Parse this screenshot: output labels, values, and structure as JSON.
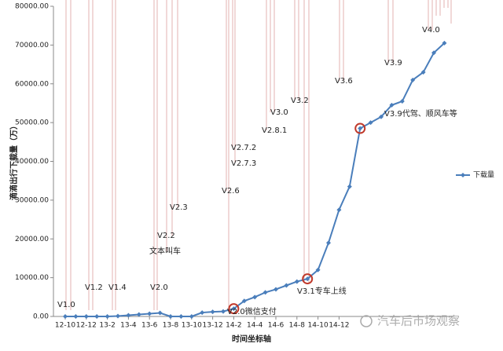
{
  "chart_data": {
    "type": "line",
    "y_label": "滴滴出行下载量（万）",
    "x_label": "时间坐标轴",
    "categories": [
      "12-10",
      null,
      "12-12",
      null,
      "13-2",
      null,
      "13-4",
      null,
      "13-6",
      null,
      "13-8",
      null,
      "13-10",
      null,
      "13-12",
      null,
      "14-2",
      null,
      "14-4",
      null,
      "14-6",
      null,
      "14-8",
      null,
      "14-10",
      null,
      "14-12",
      null,
      null,
      null,
      null,
      null,
      null,
      null,
      null,
      null,
      null
    ],
    "series": [
      {
        "name": "下载量",
        "color": "#4a7ebb",
        "values": [
          0,
          0,
          0,
          0,
          0,
          100,
          300,
          500,
          700,
          900,
          0,
          0,
          0,
          1000,
          1200,
          1300,
          2000,
          4000,
          5000,
          6200,
          7000,
          8000,
          9000,
          9700,
          12000,
          19000,
          27500,
          33500,
          48500,
          50000,
          51500,
          54500,
          55500,
          61000,
          63000,
          68000,
          70500
        ]
      }
    ],
    "ylim": [
      0,
      80000
    ],
    "yticks": [
      {
        "value": 0,
        "label": "0.00"
      },
      {
        "value": 10000,
        "label": "10000.00"
      },
      {
        "value": 20000,
        "label": "20000.00"
      },
      {
        "value": 30000,
        "label": "30000.00"
      },
      {
        "value": 40000,
        "label": "40000.00"
      },
      {
        "value": 50000,
        "label": "50000.00"
      },
      {
        "value": 60000,
        "label": "60000.00"
      },
      {
        "value": 70000,
        "label": "70000.00"
      },
      {
        "value": 80000,
        "label": "80000.00"
      }
    ],
    "legend": "right",
    "annotations": [
      "V1.0",
      "V1.2",
      "V1.4",
      "V2.0",
      "文本叫车",
      "V2.2",
      "V2.3",
      "V2.6",
      "V2.7.2",
      "V2.7.3",
      "V2.8.1",
      "V3.0",
      "V3.2",
      "V2.0微信支付",
      "V3.1专车上线",
      "V3.6",
      "V3.9",
      "V3.9代驾、顺风车等",
      "V4.0"
    ],
    "watermark": "汽车后市场观察"
  }
}
